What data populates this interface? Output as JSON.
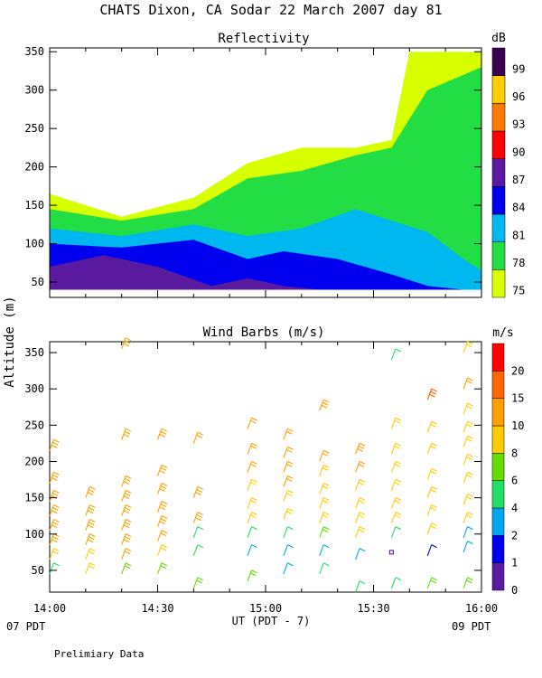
{
  "header": {
    "title": "CHATS Dixon, CA   Sodar   22 March 2007   day  81"
  },
  "footer": {
    "note": "Prelimiary Data",
    "left_tz": "07 PDT",
    "right_tz": "09 PDT"
  },
  "chart_data": [
    {
      "type": "heatmap",
      "title": "Reflectivity",
      "colorbar_label": "dB",
      "xlabel": "",
      "ylabel": "Altitude  (m)",
      "xlim": [
        "14:00",
        "16:00"
      ],
      "ylim": [
        30,
        355
      ],
      "yticks": [
        50,
        100,
        150,
        200,
        250,
        300,
        350
      ],
      "colorbar": {
        "levels": [
          75,
          78,
          81,
          84,
          87,
          90,
          93,
          96,
          99
        ],
        "colors": [
          "#d8ff00",
          "#22dd44",
          "#00b8f0",
          "#0000ee",
          "#5a1aa0",
          "#ff0000",
          "#ff7800",
          "#ffcc00",
          "#3a0050"
        ]
      },
      "layers": [
        {
          "level": 75,
          "x": [
            "14:00",
            "14:20",
            "14:40",
            "14:55",
            "15:10",
            "15:25",
            "15:35",
            "15:40",
            "15:52",
            "16:00"
          ],
          "top": [
            165,
            135,
            160,
            205,
            225,
            225,
            235,
            350,
            350,
            350
          ]
        },
        {
          "level": 78,
          "x": [
            "14:00",
            "14:20",
            "14:40",
            "14:55",
            "15:10",
            "15:25",
            "15:35",
            "15:45",
            "15:55",
            "16:00"
          ],
          "top": [
            145,
            130,
            145,
            185,
            195,
            215,
            225,
            300,
            320,
            330
          ]
        },
        {
          "level": 81,
          "x": [
            "14:00",
            "14:20",
            "14:40",
            "14:55",
            "15:10",
            "15:25",
            "15:35",
            "15:45",
            "15:55",
            "16:00"
          ],
          "top": [
            120,
            110,
            125,
            110,
            120,
            145,
            130,
            115,
            80,
            65
          ]
        },
        {
          "level": 84,
          "x": [
            "14:00",
            "14:20",
            "14:40",
            "14:55",
            "15:05",
            "15:20",
            "15:35",
            "15:45",
            "15:55",
            "16:00"
          ],
          "top": [
            100,
            95,
            105,
            80,
            90,
            80,
            60,
            45,
            40,
            40
          ]
        },
        {
          "level": 87,
          "x": [
            "14:00",
            "14:15",
            "14:30",
            "14:45",
            "14:55",
            "15:05",
            "15:15"
          ],
          "top": [
            70,
            85,
            70,
            45,
            55,
            45,
            40
          ]
        }
      ]
    },
    {
      "type": "scatter",
      "title": "Wind Barbs (m/s)",
      "colorbar_label": "m/s",
      "xlabel": "UT  (PDT - 7)",
      "xlim": [
        "14:00",
        "16:00"
      ],
      "xticks": [
        "14:00",
        "14:30",
        "15:00",
        "15:30",
        "16:00"
      ],
      "ylim": [
        20,
        365
      ],
      "yticks": [
        50,
        100,
        150,
        200,
        250,
        300,
        350
      ],
      "colorbar": {
        "levels": [
          0,
          1,
          2,
          4,
          6,
          8,
          10,
          15,
          20
        ],
        "colors": [
          "#5a1aa0",
          "#0000ee",
          "#00a8f0",
          "#22dd66",
          "#66dd00",
          "#ffcc00",
          "#ffa000",
          "#ff6600",
          "#ff0000"
        ]
      },
      "series": [
        {
          "x": "14:00",
          "altitude": [
            45,
            65,
            85,
            105,
            125,
            145,
            170,
            215
          ],
          "speed": [
            5,
            9,
            11,
            11,
            11,
            11,
            11,
            11
          ]
        },
        {
          "x": "14:10",
          "altitude": [
            45,
            65,
            85,
            105,
            125,
            150
          ],
          "speed": [
            9,
            9,
            11,
            11,
            11,
            11
          ]
        },
        {
          "x": "14:20",
          "altitude": [
            45,
            65,
            85,
            105,
            125,
            145,
            165,
            230,
            355
          ],
          "speed": [
            6,
            10,
            11,
            12,
            11,
            13,
            13,
            14,
            13
          ]
        },
        {
          "x": "14:30",
          "altitude": [
            45,
            70,
            90,
            110,
            130,
            155,
            180,
            230
          ],
          "speed": [
            6,
            9,
            10,
            11,
            11,
            11,
            13,
            14
          ]
        },
        {
          "x": "14:40",
          "altitude": [
            25,
            70,
            95,
            115,
            150,
            225
          ],
          "speed": [
            6,
            4,
            5,
            11,
            11,
            10
          ]
        },
        {
          "x": "14:55",
          "altitude": [
            35,
            70,
            95,
            115,
            135,
            160,
            185,
            210,
            245
          ],
          "speed": [
            6,
            3,
            5,
            9,
            9,
            9,
            10,
            10,
            10
          ]
        },
        {
          "x": "15:05",
          "altitude": [
            45,
            70,
            95,
            120,
            145,
            165,
            185,
            205,
            230
          ],
          "speed": [
            3,
            3,
            5,
            9,
            9,
            10,
            10,
            10,
            10
          ]
        },
        {
          "x": "15:15",
          "altitude": [
            45,
            70,
            95,
            115,
            135,
            155,
            180,
            200,
            270
          ],
          "speed": [
            4,
            3,
            6,
            9,
            9,
            9,
            9,
            10,
            12
          ]
        },
        {
          "x": "15:25",
          "altitude": [
            20,
            65,
            95,
            115,
            135,
            160,
            185,
            210
          ],
          "speed": [
            4,
            2,
            9,
            9,
            9,
            9,
            10,
            14
          ]
        },
        {
          "x": "15:35",
          "altitude": [
            25,
            75,
            95,
            115,
            135,
            160,
            185,
            210,
            245,
            340
          ],
          "speed": [
            4,
            0,
            5,
            9,
            9,
            9,
            9,
            9,
            9,
            4
          ]
        },
        {
          "x": "15:45",
          "altitude": [
            25,
            70,
            100,
            125,
            150,
            175,
            210,
            240,
            285
          ],
          "speed": [
            6,
            1,
            9,
            9,
            9,
            9,
            9,
            9,
            15
          ]
        },
        {
          "x": "15:55",
          "altitude": [
            25,
            75,
            95,
            115,
            140,
            170,
            195,
            220,
            240,
            265,
            300,
            350
          ],
          "speed": [
            6,
            2,
            3,
            9,
            9,
            9,
            9,
            9,
            9,
            9,
            10,
            9
          ]
        }
      ]
    }
  ]
}
